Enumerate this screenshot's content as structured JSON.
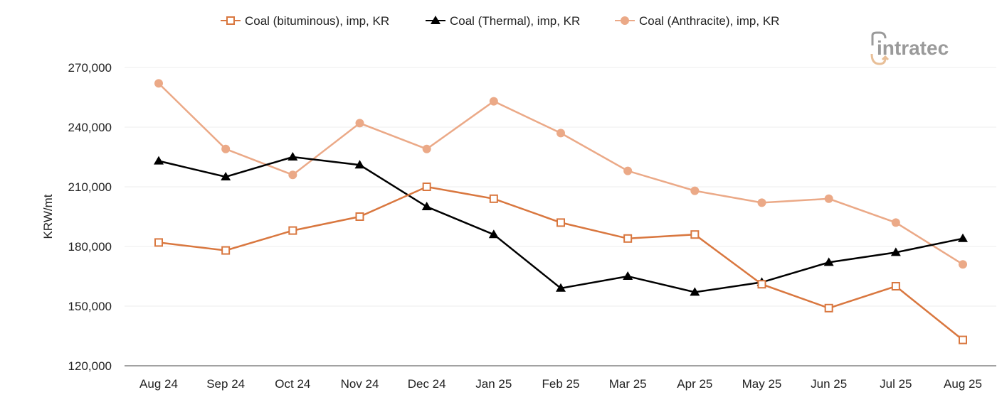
{
  "logo": {
    "text": "intratec"
  },
  "chart_data": {
    "type": "line",
    "title": "",
    "xlabel": "",
    "ylabel": "KRW/mt",
    "ylim": [
      120000,
      270000
    ],
    "yticks": [
      120000,
      150000,
      180000,
      210000,
      240000,
      270000
    ],
    "ytick_labels": [
      "120,000",
      "150,000",
      "180,000",
      "210,000",
      "240,000",
      "270,000"
    ],
    "grid": "horizontal",
    "legend_position": "top",
    "categories": [
      "Aug 24",
      "Sep 24",
      "Oct 24",
      "Nov 24",
      "Dec 24",
      "Jan 25",
      "Feb 25",
      "Mar 25",
      "Apr 25",
      "May 25",
      "Jun 25",
      "Jul 25",
      "Aug 25"
    ],
    "series": [
      {
        "name": "Coal (bituminous), imp, KR",
        "color": "#d9773f",
        "marker": "open-square",
        "values": [
          182000,
          178000,
          188000,
          195000,
          210000,
          204000,
          192000,
          184000,
          186000,
          161000,
          149000,
          160000,
          133000
        ]
      },
      {
        "name": "Coal (Thermal), imp, KR",
        "color": "#000000",
        "marker": "triangle",
        "values": [
          223000,
          215000,
          225000,
          221000,
          200000,
          186000,
          159000,
          165000,
          157000,
          162000,
          172000,
          177000,
          184000
        ]
      },
      {
        "name": "Coal (Anthracite), imp, KR",
        "color": "#eba987",
        "marker": "circle",
        "values": [
          262000,
          229000,
          216000,
          242000,
          229000,
          253000,
          237000,
          218000,
          208000,
          202000,
          204000,
          192000,
          171000
        ]
      }
    ]
  }
}
